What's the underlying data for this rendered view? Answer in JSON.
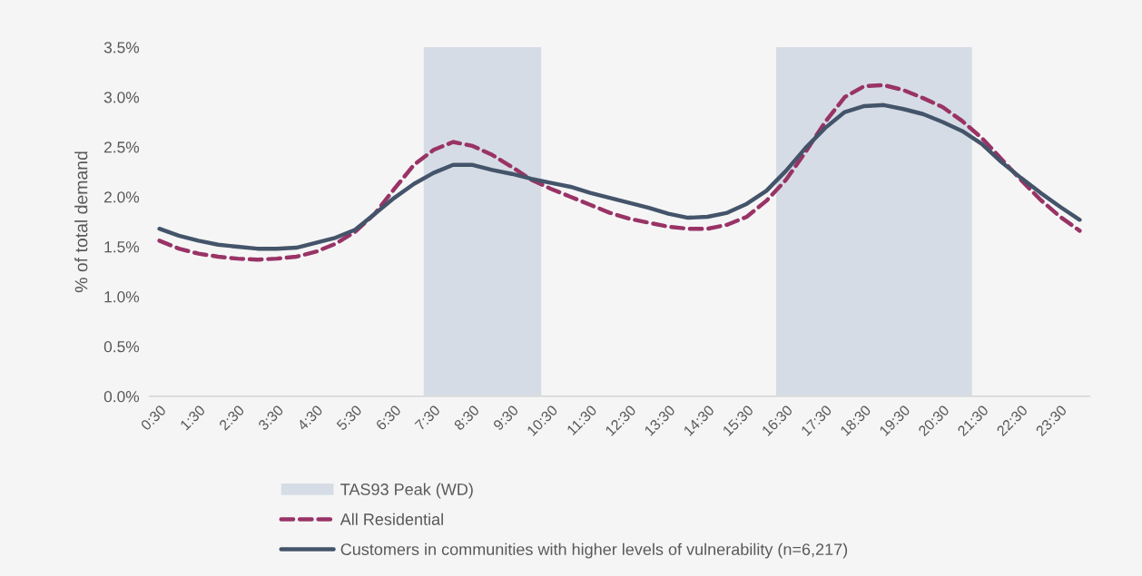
{
  "chart_data": {
    "type": "line",
    "ylabel": "% of total demand",
    "x": [
      0.5,
      1,
      1.5,
      2,
      2.5,
      3,
      3.5,
      4,
      4.5,
      5,
      5.5,
      6,
      6.5,
      7,
      7.5,
      8,
      8.5,
      9,
      9.5,
      10,
      10.5,
      11,
      11.5,
      12,
      12.5,
      13,
      13.5,
      14,
      14.5,
      15,
      15.5,
      16,
      16.5,
      17,
      17.5,
      18,
      18.5,
      19,
      19.5,
      20,
      20.5,
      21,
      21.5,
      22,
      22.5,
      23,
      23.5,
      24
    ],
    "xlim": [
      0.25,
      24.25
    ],
    "xticks": [
      {
        "value": 0.5,
        "label": "0:30"
      },
      {
        "value": 1.5,
        "label": "1:30"
      },
      {
        "value": 2.5,
        "label": "2:30"
      },
      {
        "value": 3.5,
        "label": "3:30"
      },
      {
        "value": 4.5,
        "label": "4:30"
      },
      {
        "value": 5.5,
        "label": "5:30"
      },
      {
        "value": 6.5,
        "label": "6:30"
      },
      {
        "value": 7.5,
        "label": "7:30"
      },
      {
        "value": 8.5,
        "label": "8:30"
      },
      {
        "value": 9.5,
        "label": "9:30"
      },
      {
        "value": 10.5,
        "label": "10:30"
      },
      {
        "value": 11.5,
        "label": "11:30"
      },
      {
        "value": 12.5,
        "label": "12:30"
      },
      {
        "value": 13.5,
        "label": "13:30"
      },
      {
        "value": 14.5,
        "label": "14:30"
      },
      {
        "value": 15.5,
        "label": "15:30"
      },
      {
        "value": 16.5,
        "label": "16:30"
      },
      {
        "value": 17.5,
        "label": "17:30"
      },
      {
        "value": 18.5,
        "label": "18:30"
      },
      {
        "value": 19.5,
        "label": "19:30"
      },
      {
        "value": 20.5,
        "label": "20:30"
      },
      {
        "value": 21.5,
        "label": "21:30"
      },
      {
        "value": 22.5,
        "label": "22:30"
      },
      {
        "value": 23.5,
        "label": "23:30"
      }
    ],
    "bands": [
      {
        "axis": "x",
        "from": 7.25,
        "to": 10.25,
        "label": "TAS93 Peak (WD)",
        "color": "#d6dce5"
      },
      {
        "axis": "x",
        "from": 16.25,
        "to": 21.25,
        "color": "#d6dce5"
      }
    ],
    "series": [
      {
        "name": "All Residential",
        "line_style": "dashed",
        "color": "#993366",
        "values": [
          1.56,
          1.48,
          1.43,
          1.4,
          1.38,
          1.37,
          1.38,
          1.4,
          1.45,
          1.53,
          1.65,
          1.83,
          2.08,
          2.32,
          2.47,
          2.55,
          2.51,
          2.42,
          2.3,
          2.17,
          2.08,
          2.0,
          1.92,
          1.84,
          1.78,
          1.74,
          1.7,
          1.68,
          1.68,
          1.72,
          1.8,
          1.96,
          2.17,
          2.45,
          2.75,
          3.0,
          3.11,
          3.12,
          3.07,
          2.99,
          2.9,
          2.76,
          2.59,
          2.38,
          2.17,
          1.97,
          1.8,
          1.66
        ]
      },
      {
        "name": "Customers in communities with higher levels of vulnerability (n=6,217)",
        "line_style": "solid",
        "color": "#44546a",
        "values": [
          1.68,
          1.61,
          1.56,
          1.52,
          1.5,
          1.48,
          1.48,
          1.49,
          1.54,
          1.59,
          1.67,
          1.83,
          1.99,
          2.13,
          2.24,
          2.32,
          2.32,
          2.27,
          2.23,
          2.18,
          2.14,
          2.1,
          2.04,
          1.99,
          1.94,
          1.89,
          1.83,
          1.79,
          1.8,
          1.84,
          1.93,
          2.06,
          2.26,
          2.49,
          2.69,
          2.85,
          2.91,
          2.92,
          2.88,
          2.83,
          2.75,
          2.66,
          2.53,
          2.35,
          2.19,
          2.04,
          1.9,
          1.77
        ]
      }
    ],
    "ylim": [
      0,
      3.5
    ],
    "yticks": [
      {
        "value": 0,
        "label": "0.0%"
      },
      {
        "value": 0.5,
        "label": "0.5%"
      },
      {
        "value": 1,
        "label": "1.0%"
      },
      {
        "value": 1.5,
        "label": "1.5%"
      },
      {
        "value": 2,
        "label": "2.0%"
      },
      {
        "value": 2.5,
        "label": "2.5%"
      },
      {
        "value": 3,
        "label": "3.0%"
      },
      {
        "value": 3.5,
        "label": "3.5%"
      }
    ],
    "grid": false,
    "legend": "bottom",
    "marker": "none"
  }
}
